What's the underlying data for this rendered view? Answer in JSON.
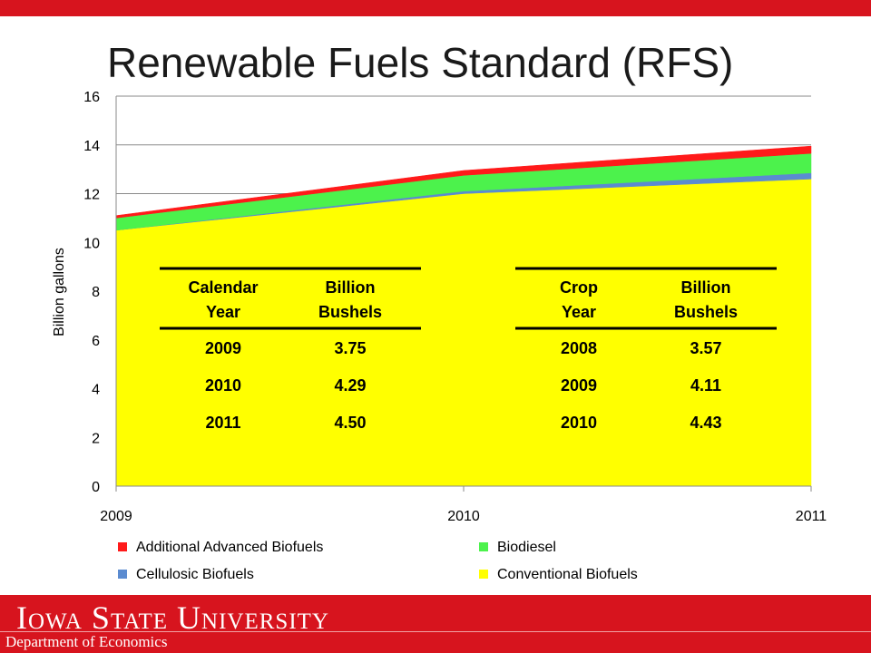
{
  "slide": {
    "title": "Renewable Fuels Standard (RFS)",
    "footer_university": "Iowa State University",
    "footer_department": "Department of Economics"
  },
  "colors": {
    "brand_red": "#d7141e",
    "additional_advanced": "#ff1a1a",
    "biodiesel": "#4cf24c",
    "cellulosic": "#5b8bd0",
    "conventional": "#ffff00"
  },
  "chart_data": {
    "type": "area",
    "stacked": true,
    "title": "",
    "xlabel": "",
    "ylabel": "Billion gallons",
    "x": [
      "2009",
      "2010",
      "2011"
    ],
    "ylim": [
      0,
      16
    ],
    "yticks": [
      "0",
      "2",
      "4",
      "6",
      "8",
      "10",
      "12",
      "14",
      "16"
    ],
    "grid": "horizontal",
    "legend_position": "bottom",
    "series": [
      {
        "name": "Conventional Biofuels",
        "color": "#ffff00",
        "values": [
          10.5,
          12.0,
          12.6
        ]
      },
      {
        "name": "Cellulosic Biofuels",
        "color": "#5b8bd0",
        "values": [
          0.0,
          0.1,
          0.25
        ]
      },
      {
        "name": "Biodiesel",
        "color": "#4cf24c",
        "values": [
          0.5,
          0.65,
          0.8
        ]
      },
      {
        "name": "Additional Advanced Biofuels",
        "color": "#ff1a1a",
        "values": [
          0.1,
          0.2,
          0.3
        ]
      }
    ],
    "legend_order": [
      "Additional Advanced Biofuels",
      "Biodiesel",
      "Cellulosic Biofuels",
      "Conventional Biofuels"
    ]
  },
  "tables": [
    {
      "header": [
        [
          "Calendar",
          "Year"
        ],
        [
          "Billion",
          "Bushels"
        ]
      ],
      "rows": [
        [
          "2009",
          "3.75"
        ],
        [
          "2010",
          "4.29"
        ],
        [
          "2011",
          "4.50"
        ]
      ]
    },
    {
      "header": [
        [
          "Crop",
          "Year"
        ],
        [
          "Billion",
          "Bushels"
        ]
      ],
      "rows": [
        [
          "2008",
          "3.57"
        ],
        [
          "2009",
          "4.11"
        ],
        [
          "2010",
          "4.43"
        ]
      ]
    }
  ]
}
